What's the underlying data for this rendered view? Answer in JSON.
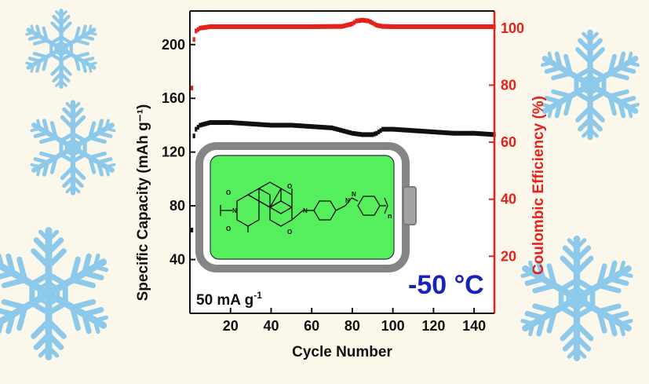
{
  "chart_data": {
    "type": "scatter",
    "xlabel": "Cycle Number",
    "ylabel_left": "Specific Capacity (mAh g⁻¹)",
    "ylabel_right": "Coulombic Efficiency (%)",
    "xlim": [
      0,
      150
    ],
    "ylim_left": [
      0,
      225
    ],
    "ylim_right": [
      0,
      106
    ],
    "x_ticks": [
      20,
      40,
      60,
      80,
      100,
      120,
      140
    ],
    "y_left_ticks": [
      40,
      80,
      120,
      160,
      200
    ],
    "y_right_ticks": [
      20,
      40,
      60,
      80,
      100
    ],
    "series": [
      {
        "axis": "left",
        "color": "#111111",
        "x": [
          1,
          2,
          3,
          5,
          10,
          20,
          30,
          40,
          50,
          60,
          70,
          75,
          80,
          85,
          90,
          92,
          95,
          100,
          110,
          120,
          130,
          140,
          150
        ],
        "y": [
          62,
          132,
          137,
          140,
          142,
          142,
          141,
          140,
          140,
          139,
          138,
          136,
          134,
          133,
          133,
          134,
          137,
          137,
          136,
          135,
          134,
          134,
          133
        ]
      },
      {
        "axis": "right",
        "color": "#e6201b",
        "x": [
          1,
          2,
          3,
          5,
          10,
          20,
          40,
          60,
          75,
          80,
          82,
          85,
          88,
          90,
          92,
          95,
          100,
          120,
          140,
          150
        ],
        "y": [
          79,
          96,
          99,
          100,
          100.5,
          100.5,
          100.5,
          100.5,
          100.6,
          101.5,
          102.5,
          102.8,
          102.5,
          101.8,
          101,
          100.6,
          100.5,
          100.5,
          100.5,
          100.5
        ]
      }
    ],
    "annotations": {
      "rate": "50 mA g",
      "rate_sup": "-1",
      "temperature": "-50 °C",
      "polymer_subscript": "n"
    }
  },
  "colors": {
    "background": "#fbf7ea",
    "snowflake": "#8cc9ea",
    "battery_fill": "#55ee5d",
    "battery_case": "#888888",
    "temperature_text": "#1a23b8",
    "right_axis": "#e6201b"
  }
}
